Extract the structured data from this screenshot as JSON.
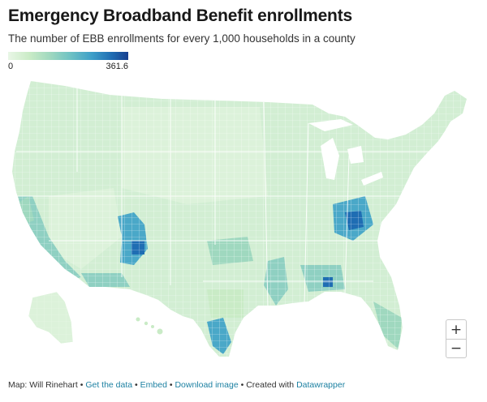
{
  "header": {
    "title": "Emergency Broadband Benefit enrollments",
    "subtitle": "The number of EBB enrollments for every 1,000 households in a county"
  },
  "legend": {
    "min_label": "0",
    "max_label": "361.6",
    "min_value": 0,
    "max_value": 361.6,
    "colors": [
      "#e9f6e6",
      "#c9ebc6",
      "#9fd8bf",
      "#6ec2c4",
      "#3d9ec8",
      "#1f6db3",
      "#173f8f"
    ]
  },
  "map": {
    "type": "choropleth",
    "geography": "US counties",
    "metric": "EBB enrollments per 1,000 households",
    "base_color": "#d2eed3",
    "region_color": "#dcf2da",
    "low_color": "#e9f6e6",
    "mid_color": "#8fd0c2",
    "high_color": "#4aa8c8",
    "peak_color": "#1f6db3",
    "border_color": "#ffffff"
  },
  "zoom": {
    "in_label": "+",
    "out_label": "−"
  },
  "footer": {
    "source": "Map: Will Rinehart",
    "get_data": "Get the data",
    "embed": "Embed",
    "download": "Download image",
    "created_with": "Created with",
    "datawrapper": "Datawrapper",
    "separator": "•"
  }
}
